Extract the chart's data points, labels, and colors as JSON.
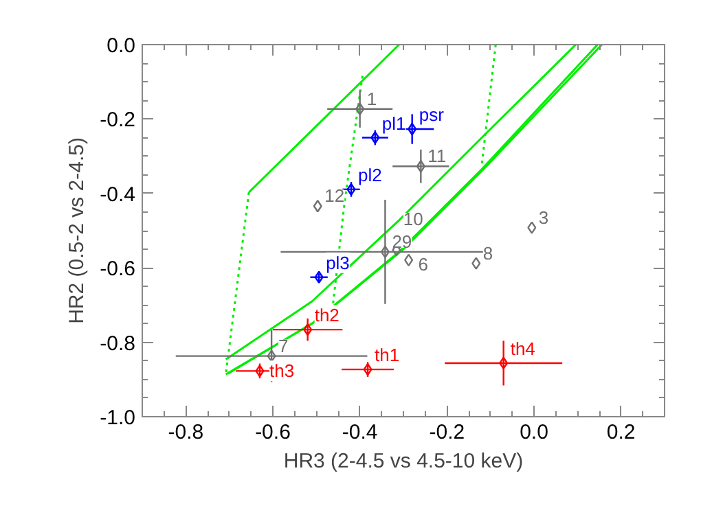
{
  "chart_data": {
    "type": "scatter",
    "xlabel": "HR3 (2-4.5 vs 4.5-10 keV)",
    "ylabel": "HR2 (0.5-2 vs 2-4.5)",
    "xlim": [
      -0.9,
      0.3
    ],
    "ylim": [
      -1.0,
      0.0
    ],
    "xticks": [
      {
        "value": -0.85,
        "label": null
      },
      {
        "value": -0.8,
        "label": "-0.8"
      },
      {
        "value": -0.75,
        "label": null
      },
      {
        "value": -0.7,
        "label": null
      },
      {
        "value": -0.65,
        "label": null
      },
      {
        "value": -0.6,
        "label": "-0.6"
      },
      {
        "value": -0.55,
        "label": null
      },
      {
        "value": -0.5,
        "label": null
      },
      {
        "value": -0.45,
        "label": null
      },
      {
        "value": -0.4,
        "label": "-0.4"
      },
      {
        "value": -0.35,
        "label": null
      },
      {
        "value": -0.3,
        "label": null
      },
      {
        "value": -0.25,
        "label": null
      },
      {
        "value": -0.2,
        "label": "-0.2"
      },
      {
        "value": -0.15,
        "label": null
      },
      {
        "value": -0.1,
        "label": null
      },
      {
        "value": -0.05,
        "label": null
      },
      {
        "value": 0,
        "label": "0.0"
      },
      {
        "value": 0.05,
        "label": null
      },
      {
        "value": 0.1,
        "label": null
      },
      {
        "value": 0.15,
        "label": null
      },
      {
        "value": 0.2,
        "label": "0.2"
      },
      {
        "value": 0.25,
        "label": null
      }
    ],
    "yticks": [
      {
        "value": -1.0,
        "label": "-1.0"
      },
      {
        "value": -0.95,
        "label": null
      },
      {
        "value": -0.9,
        "label": null
      },
      {
        "value": -0.85,
        "label": null
      },
      {
        "value": -0.8,
        "label": "-0.8"
      },
      {
        "value": -0.75,
        "label": null
      },
      {
        "value": -0.7,
        "label": null
      },
      {
        "value": -0.65,
        "label": null
      },
      {
        "value": -0.6,
        "label": "-0.6"
      },
      {
        "value": -0.55,
        "label": null
      },
      {
        "value": -0.5,
        "label": null
      },
      {
        "value": -0.45,
        "label": null
      },
      {
        "value": -0.4,
        "label": "-0.4"
      },
      {
        "value": -0.35,
        "label": null
      },
      {
        "value": -0.3,
        "label": null
      },
      {
        "value": -0.25,
        "label": null
      },
      {
        "value": -0.2,
        "label": "-0.2"
      },
      {
        "value": -0.15,
        "label": null
      },
      {
        "value": -0.1,
        "label": null
      },
      {
        "value": -0.05,
        "label": null
      },
      {
        "value": 0,
        "label": "0.0"
      }
    ],
    "marker": "diamond",
    "series": [
      {
        "type": "line",
        "marker": "none",
        "color": "#00ee00",
        "line_style": "solid",
        "x": [
          -0.655,
          -0.31
        ],
        "values": [
          -0.397,
          0.0
        ]
      },
      {
        "type": "line",
        "marker": "none",
        "color": "#00ee00",
        "line_style": "dotted",
        "x": [
          -0.655,
          -0.708
        ],
        "values": [
          -0.397,
          -0.886
        ]
      },
      {
        "type": "line",
        "marker": "none",
        "color": "#00ee00",
        "line_style": "solid",
        "x": [
          -0.708,
          -0.51,
          -0.31,
          -0.12,
          0.096
        ],
        "values": [
          -0.846,
          -0.69,
          -0.472,
          -0.25,
          0.0
        ]
      },
      {
        "type": "line",
        "marker": "none",
        "color": "#00ee00",
        "line_style": "solid",
        "x": [
          -0.708,
          -0.51,
          -0.31,
          -0.12,
          0.146
        ],
        "values": [
          -0.886,
          -0.75,
          -0.557,
          -0.335,
          0.0
        ]
      },
      {
        "type": "line",
        "marker": "none",
        "color": "#00ee00",
        "line_style": "solid",
        "x": [
          -0.703,
          -0.505,
          -0.302,
          -0.112,
          0.156
        ],
        "values": [
          -0.884,
          -0.746,
          -0.552,
          -0.33,
          0.0
        ]
      },
      {
        "type": "line",
        "marker": "none",
        "color": "#00ee00",
        "line_style": "dotted",
        "x": [
          -0.394,
          -0.435,
          -0.462
        ],
        "values": [
          -0.084,
          -0.422,
          -0.7
        ]
      },
      {
        "type": "line",
        "marker": "none",
        "color": "#00ee00",
        "line_style": "dotted",
        "x": [
          -0.088,
          -0.12
        ],
        "values": [
          0.0,
          -0.324
        ]
      },
      {
        "name": "1",
        "color": "#707070",
        "x": [
          -0.4
        ],
        "values": [
          -0.173
        ],
        "xerrors": [
          0.075
        ],
        "errors": [
          0.05
        ]
      },
      {
        "name": "pl1",
        "color": "#0000ff",
        "x": [
          -0.365
        ],
        "values": [
          -0.25
        ],
        "xerrors": [
          0.03
        ],
        "errors": [
          0.02
        ]
      },
      {
        "name": "psr",
        "color": "#0000ff",
        "x": [
          -0.28
        ],
        "values": [
          -0.227
        ],
        "xerrors": [
          0.05
        ],
        "errors": [
          0.04
        ]
      },
      {
        "name": "11",
        "color": "#707070",
        "x": [
          -0.26
        ],
        "values": [
          -0.327
        ],
        "xerrors": [
          0.065
        ],
        "errors": [
          0.045
        ]
      },
      {
        "name": "pl2",
        "color": "#0000ff",
        "x": [
          -0.42
        ],
        "values": [
          -0.389
        ],
        "xerrors": [
          0.02
        ],
        "errors": [
          0.02
        ]
      },
      {
        "name": "12",
        "color": "#707070",
        "x": [
          -0.497
        ],
        "values": [
          -0.434
        ]
      },
      {
        "name": "3",
        "color": "#707070",
        "x": [
          -0.005
        ],
        "values": [
          -0.492
        ]
      },
      {
        "name": "29",
        "color": "#707070",
        "x": [
          -0.342
        ],
        "values": [
          -0.557
        ],
        "xerrors": [
          0.24
        ],
        "errors": [
          0.14
        ]
      },
      {
        "name": "10",
        "color": "#707070",
        "x": [
          -0.316
        ],
        "values": [
          -0.552
        ]
      },
      {
        "name": "6",
        "color": "#707070",
        "x": [
          -0.288
        ],
        "values": [
          -0.579
        ]
      },
      {
        "name": "8",
        "color": "#707070",
        "x": [
          -0.133
        ],
        "values": [
          -0.588
        ]
      },
      {
        "name": "pl3",
        "color": "#0000ff",
        "x": [
          -0.494
        ],
        "values": [
          -0.625
        ],
        "xerrors": [
          0.02
        ],
        "errors": [
          0.01
        ]
      },
      {
        "name": "th2",
        "color": "#ff0000",
        "x": [
          -0.52
        ],
        "values": [
          -0.766
        ],
        "xerrors": [
          0.08
        ],
        "errors": [
          0.03
        ]
      },
      {
        "name": "7",
        "color": "#707070",
        "x": [
          -0.603
        ],
        "values": [
          -0.837
        ],
        "xerrors": [
          0.22
        ],
        "errors": [
          0.07
        ]
      },
      {
        "name": "th3",
        "color": "#ff0000",
        "x": [
          -0.63
        ],
        "values": [
          -0.877
        ],
        "xerrors": [
          0.055
        ],
        "errors": [
          0.02
        ]
      },
      {
        "name": "th1",
        "color": "#ff0000",
        "x": [
          -0.382
        ],
        "values": [
          -0.873
        ],
        "xerrors": [
          0.06
        ],
        "errors": [
          0.02
        ]
      },
      {
        "name": "th4",
        "color": "#ff0000",
        "x": [
          -0.07
        ],
        "values": [
          -0.856
        ],
        "xerrors": [
          0.135
        ],
        "errors": [
          0.06
        ]
      }
    ]
  }
}
